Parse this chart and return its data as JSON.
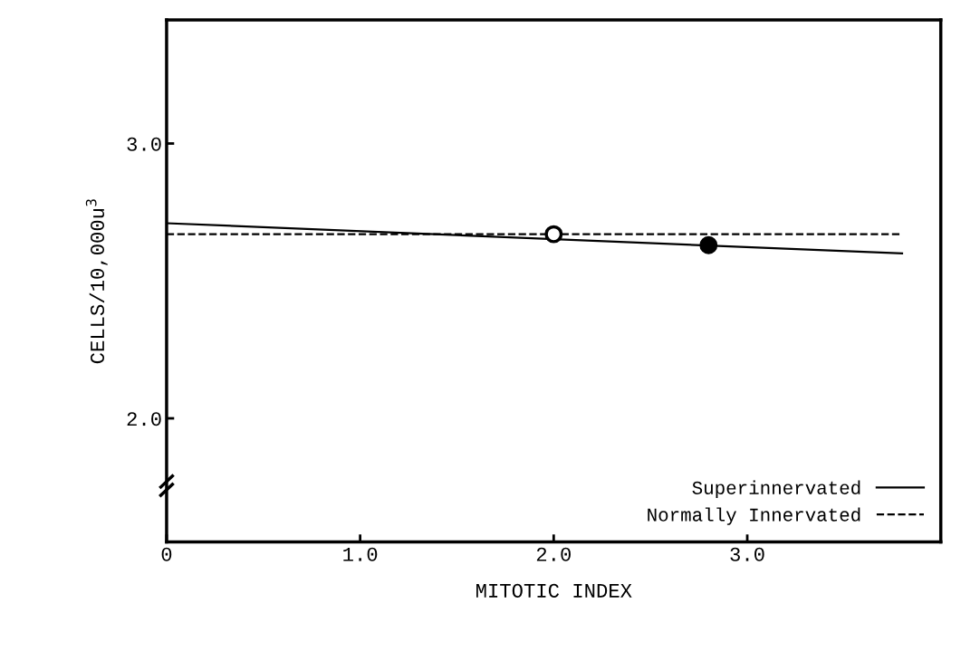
{
  "chart_data": {
    "type": "line",
    "xlabel": "MITOTIC INDEX",
    "ylabel": "CELLS/10,000u$^{3}$",
    "xlim": [
      0,
      4.0
    ],
    "xticks": [
      0,
      {
        "value": 1,
        "label": "1.0"
      },
      {
        "value": 2,
        "label": "2.0"
      },
      {
        "value": 3,
        "label": "3.0"
      }
    ],
    "ylim": [
      1.55,
      3.45
    ],
    "yticks": [
      {
        "value": 2,
        "label": "2.0"
      },
      {
        "value": 3,
        "label": "3.0"
      }
    ],
    "grid": false,
    "legend": "bottom right",
    "marker": "none",
    "series": [
      {
        "name": "Superinnervated",
        "color": "#000000",
        "line_style": "solid",
        "x": [
          0,
          3.8
        ],
        "values": [
          2.71,
          2.6
        ]
      },
      {
        "name": "Normally Innervated",
        "color": "#000000",
        "line_style": "dashed",
        "x": [
          0,
          3.8
        ],
        "values": [
          2.67,
          2.67
        ]
      },
      {
        "color": "#ffffff",
        "type": "scatter",
        "marker": "circle",
        "x": [
          2.0
        ],
        "values": [
          2.67
        ]
      },
      {
        "color": "#000000",
        "type": "scatter",
        "marker": "circle",
        "x": [
          2.8
        ],
        "values": [
          2.63
        ]
      }
    ]
  }
}
